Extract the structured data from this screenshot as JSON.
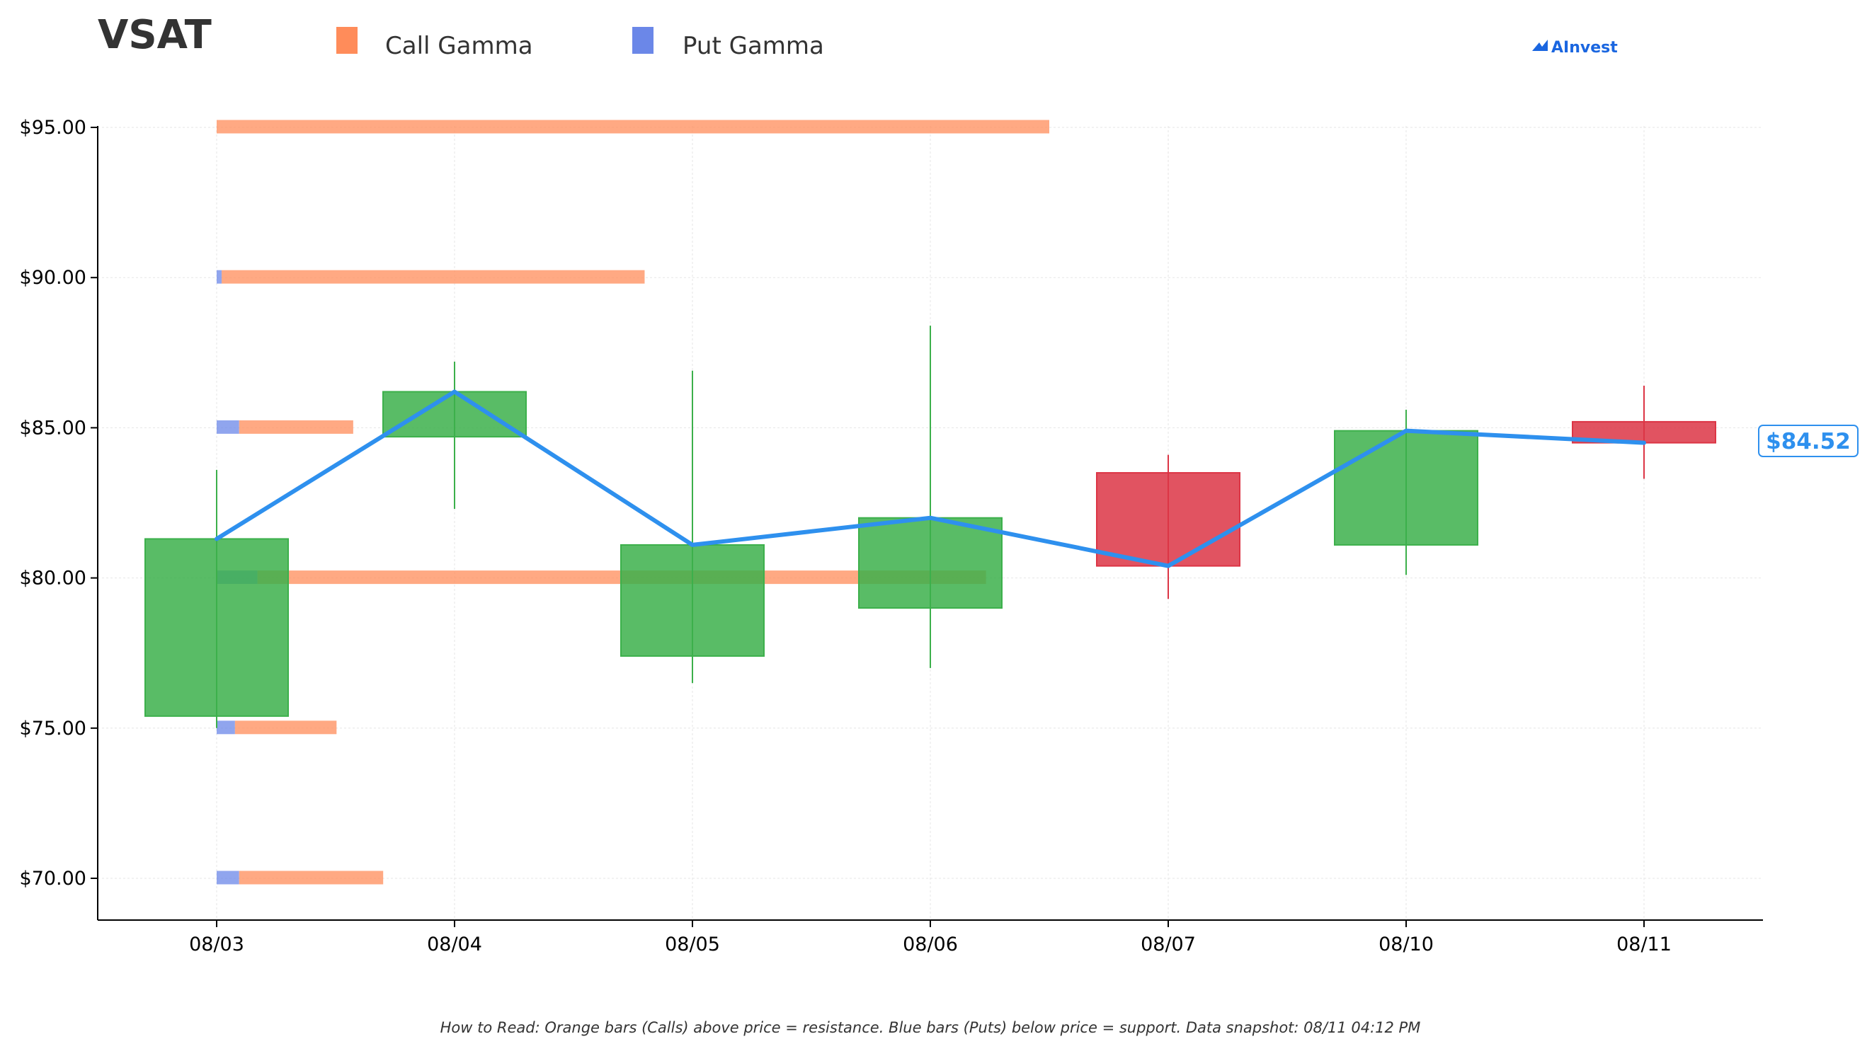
{
  "ticker": "VSAT",
  "legend": {
    "call_label": "Call Gamma",
    "put_label": "Put Gamma"
  },
  "brand": "AInvest",
  "last_price_label": "$84.52",
  "footnote": "How to Read: Orange bars (Calls) above price = resistance. Blue bars (Puts) below price = support. Data snapshot: 08/11 04:12 PM",
  "colors": {
    "call": "#ff8c5a",
    "put": "#6b87e8",
    "up": "#3cb04b",
    "down": "#dc3545",
    "price_line": "#2e90ee",
    "brand": "#1a66e0"
  },
  "chart_data": {
    "type": "candlestick",
    "categories": [
      "08/03",
      "08/04",
      "08/05",
      "08/06",
      "08/07",
      "08/10",
      "08/11"
    ],
    "ylim": [
      68.6,
      95.0
    ],
    "yticks": [
      70,
      75,
      80,
      85,
      90,
      95
    ],
    "ytick_labels": [
      "$70.00",
      "$75.00",
      "$80.00",
      "$85.00",
      "$90.00",
      "$95.00"
    ],
    "grid": true,
    "candles": [
      {
        "open": 75.4,
        "high": 83.6,
        "low": 75.0,
        "close": 81.3
      },
      {
        "open": 84.7,
        "high": 87.2,
        "low": 82.3,
        "close": 86.2
      },
      {
        "open": 77.4,
        "high": 86.9,
        "low": 76.5,
        "close": 81.1
      },
      {
        "open": 79.0,
        "high": 88.4,
        "low": 77.0,
        "close": 82.0
      },
      {
        "open": 83.5,
        "high": 84.1,
        "low": 79.3,
        "close": 80.4
      },
      {
        "open": 81.1,
        "high": 85.6,
        "low": 80.1,
        "close": 84.9
      },
      {
        "open": 85.2,
        "high": 86.4,
        "low": 83.3,
        "close": 84.5
      }
    ],
    "price_line": [
      81.3,
      86.2,
      81.1,
      82.0,
      80.4,
      84.9,
      84.5
    ],
    "gamma_strikes": [
      95,
      90,
      85,
      80,
      75,
      70
    ],
    "call_gamma": [
      100,
      50.8,
      13.7,
      87.5,
      12.2,
      17.3
    ],
    "put_gamma": [
      0,
      0.6,
      2.7,
      4.9,
      2.2,
      2.7
    ],
    "legend_position": "top"
  }
}
